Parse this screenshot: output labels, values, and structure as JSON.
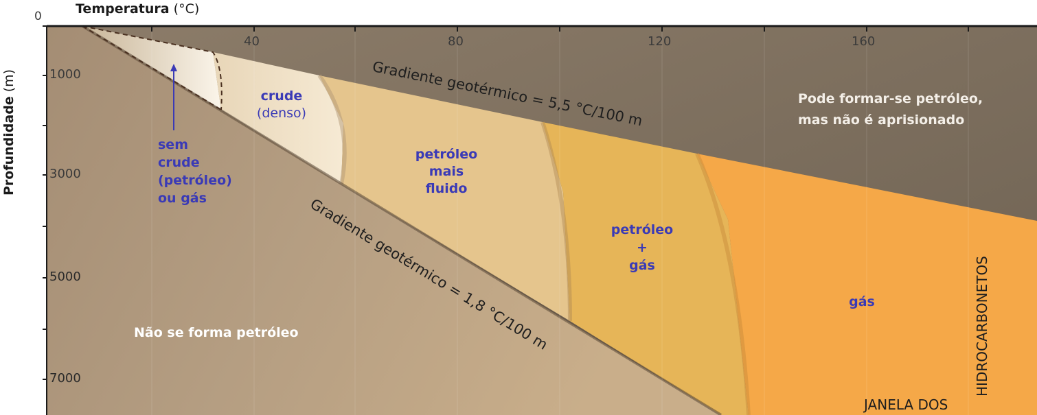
{
  "axes": {
    "x_title_bold": "Temperatura",
    "x_title_unit": "(°C)",
    "y_title_bold": "Profundidade",
    "y_title_unit": "(m)",
    "origin_label": "0",
    "x_ticks": [
      "40",
      "80",
      "120",
      "160"
    ],
    "y_ticks": [
      "1000",
      "3000",
      "5000",
      "7000"
    ]
  },
  "gradients": {
    "high": "Gradiente geotérmico = 5,5 °C/100 m",
    "low": "Gradiente geotérmico = 1,8 °C/100 m"
  },
  "zones": {
    "no_crude": [
      "sem",
      "crude",
      "(petróleo)",
      "ou gás"
    ],
    "crude_title": "crude",
    "crude_sub": "(denso)",
    "fluid_oil": [
      "petróleo",
      "mais",
      "fluido"
    ],
    "oil_gas": [
      "petróleo",
      "+",
      "gás"
    ],
    "gas": "gás",
    "no_oil": "Não se forma petróleo",
    "not_trapped": [
      "Pode formar-se petróleo,",
      "mas não é aprisionado"
    ]
  },
  "window_label": [
    "JANELA DOS",
    "HIDROCARBONETOS"
  ],
  "colors": {
    "upper_bg": "#7d6f60",
    "lower_bg": "#b09a7e",
    "crude": "#f2e2c8",
    "fluid": "#e5c58d",
    "oil_gas": "#e6b558",
    "gas": "#f5a848",
    "label_blue": "#3a3ab6"
  }
}
